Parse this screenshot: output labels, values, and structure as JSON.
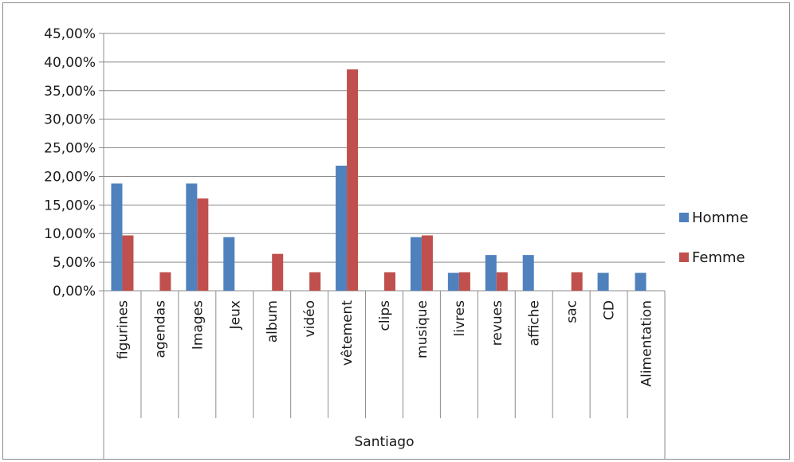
{
  "chart_data": {
    "type": "bar",
    "title": "",
    "xlabel": "",
    "ylabel": "",
    "group_label": "Santiago",
    "categories": [
      "figurines",
      "agendas",
      "Images",
      "Jeux",
      "album",
      "vidéo",
      "vêtement",
      "clips",
      "musique",
      "livres",
      "revues",
      "affiche",
      "sac",
      "CD",
      "Alimentation"
    ],
    "series": [
      {
        "name": "Homme",
        "color": "#4f81bd",
        "values": [
          0.1875,
          0,
          0.1875,
          0.09375,
          0,
          0,
          0.21875,
          0,
          0.09375,
          0.03125,
          0.0625,
          0.0625,
          0,
          0.03125,
          0.03125
        ]
      },
      {
        "name": "Femme",
        "color": "#c0504d",
        "values": [
          0.0968,
          0.0323,
          0.1613,
          0,
          0.0645,
          0.0323,
          0.3871,
          0.0323,
          0.0968,
          0.0323,
          0.0323,
          0,
          0.0323,
          0,
          0
        ]
      }
    ],
    "ylim": [
      0,
      0.45
    ],
    "yticks": [
      "0,00%",
      "5,00%",
      "10,00%",
      "15,00%",
      "20,00%",
      "25,00%",
      "30,00%",
      "35,00%",
      "40,00%",
      "45,00%"
    ],
    "grid": true,
    "legend_position": "right"
  }
}
